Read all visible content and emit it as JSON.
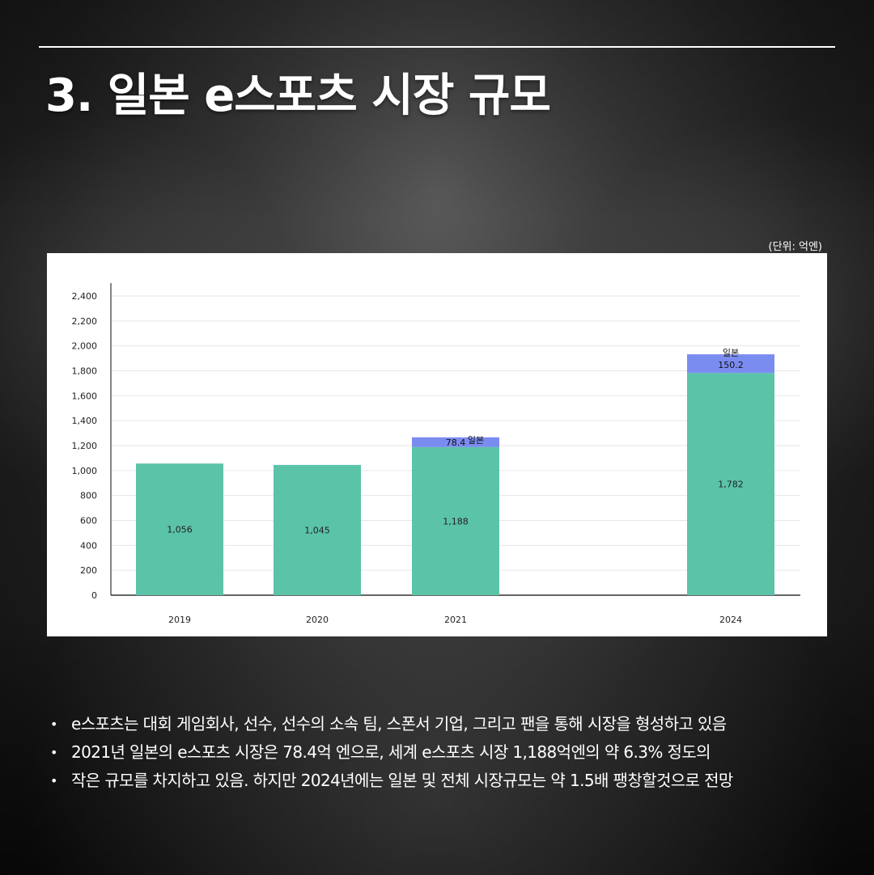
{
  "header": {
    "title": "3. 일본 e스포츠 시장 규모",
    "unit": "(단위: 억엔)"
  },
  "chart_data": {
    "type": "bar",
    "stacked": true,
    "categories": [
      "2019",
      "2020",
      "2021",
      "2024"
    ],
    "series": [
      {
        "values": [
          1056,
          1045,
          1188,
          1782
        ],
        "labels": [
          "1,056",
          "1,045",
          "1,188",
          "1,782"
        ],
        "color": "#5bc3a8"
      },
      {
        "name": "일본",
        "values": [
          null,
          null,
          78.4,
          150.2
        ],
        "labels": [
          "",
          "",
          "78.4",
          "150.2"
        ],
        "color": "#7b8cf0"
      }
    ],
    "ylim": [
      0,
      2400
    ],
    "yticks": [
      0,
      200,
      400,
      600,
      800,
      1000,
      1200,
      1400,
      1600,
      1800,
      2000,
      2200,
      2400
    ],
    "ytick_labels": [
      "0",
      "200",
      "400",
      "600",
      "800",
      "1,000",
      "1,200",
      "1,400",
      "1,600",
      "1,800",
      "2,000",
      "2,200",
      "2,400"
    ],
    "grid": true,
    "title": "",
    "xlabel": "",
    "ylabel": ""
  },
  "bullets": [
    "e스포츠는 대회 게임회사, 선수, 선수의 소속 팀, 스폰서 기업, 그리고 팬을 통해 시장을 형성하고 있음",
    "2021년 일본의 e스포츠 시장은 78.4억 엔으로, 세계 e스포츠 시장 1,188억엔의 약 6.3% 정도의",
    "작은 규모를 차지하고 있음. 하지만 2024년에는 일본 및 전체 시장규모는 약 1.5배 팽창할것으로 전망"
  ],
  "bullet_symbol": "•"
}
